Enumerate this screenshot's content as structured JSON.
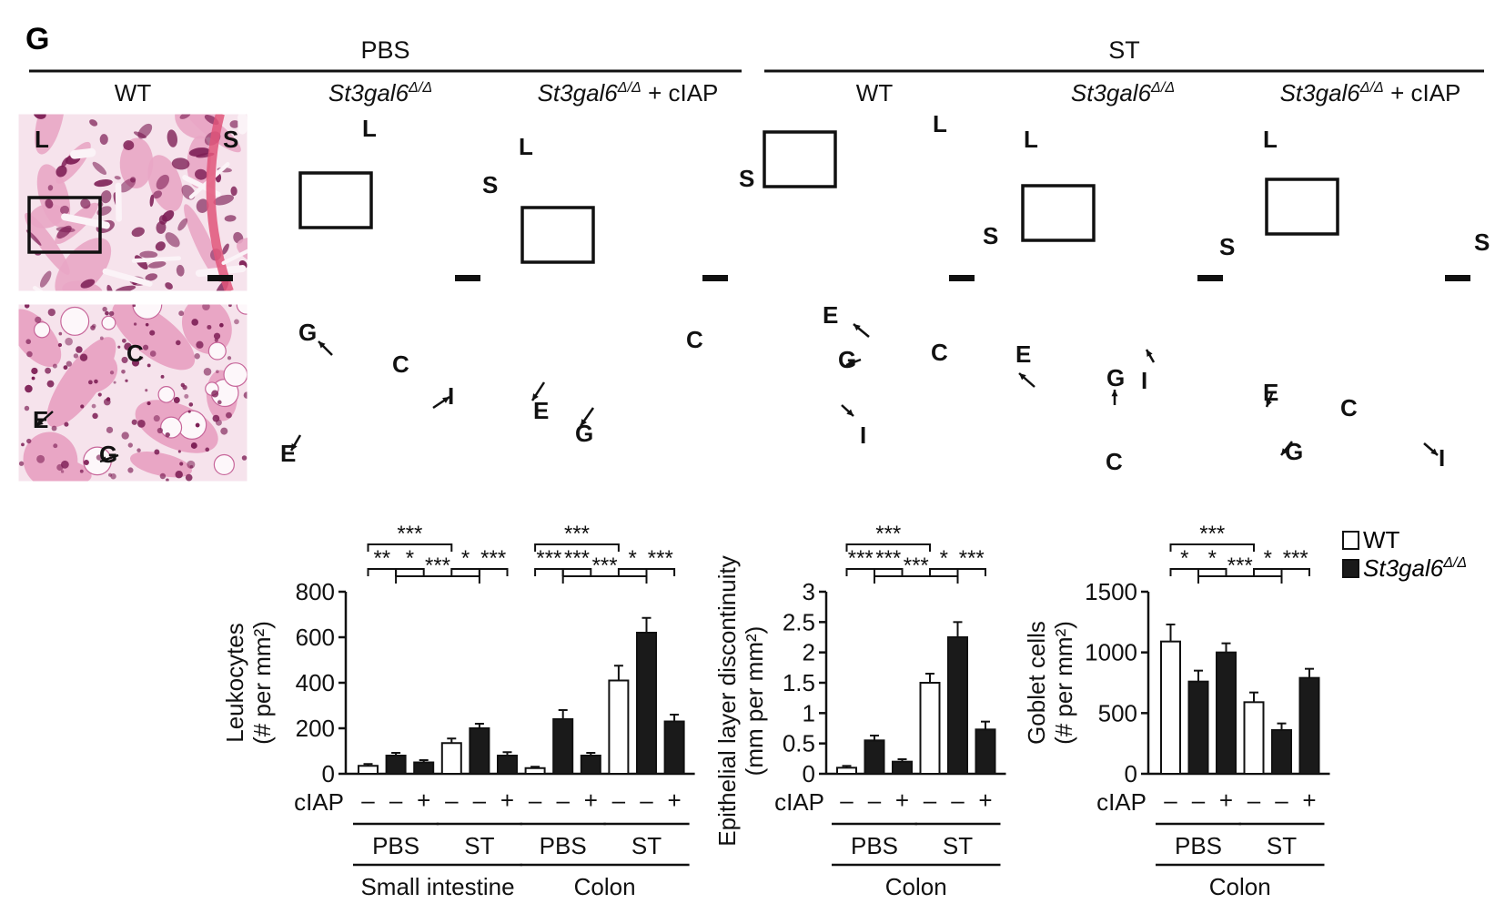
{
  "panel_label": "G",
  "colors": {
    "wt_fill": "#ffffff",
    "mut_fill": "#1a1a1a",
    "tissue_light": "#e9a6c5",
    "tissue_dark": "#7d1e55",
    "tissue_bg": "#f6e3ec",
    "muscle": "#e0557a"
  },
  "micrographs": {
    "group_headers": [
      "PBS",
      "ST"
    ],
    "column_titles": [
      {
        "main": "WT",
        "sup": "",
        "suffix": ""
      },
      {
        "main": "St3gal6",
        "sup": "Δ/Δ",
        "suffix": ""
      },
      {
        "main": "St3gal6",
        "sup": "Δ/Δ",
        "suffix": " + cIAP"
      },
      {
        "main": "WT",
        "sup": "",
        "suffix": ""
      },
      {
        "main": "St3gal6",
        "sup": "Δ/Δ",
        "suffix": ""
      },
      {
        "main": "St3gal6",
        "sup": "Δ/Δ",
        "suffix": " + cIAP"
      }
    ],
    "top_panels": [
      {
        "labels": [
          "L",
          "S"
        ]
      },
      {
        "labels": [
          "L",
          "S"
        ]
      },
      {
        "labels": [
          "L",
          "S"
        ]
      },
      {
        "labels": [
          "L",
          "S"
        ]
      },
      {
        "labels": [
          "L",
          "S"
        ]
      },
      {
        "labels": [
          "L",
          "S"
        ]
      }
    ],
    "bottom_panels": [
      {
        "labels": [
          "C",
          "E",
          "G"
        ]
      },
      {
        "labels": [
          "G",
          "C",
          "I",
          "E"
        ]
      },
      {
        "labels": [
          "C",
          "E",
          "G"
        ]
      },
      {
        "labels": [
          "E",
          "G",
          "C",
          "I"
        ]
      },
      {
        "labels": [
          "E",
          "G",
          "I",
          "C"
        ]
      },
      {
        "labels": [
          "E",
          "C",
          "G",
          "I"
        ]
      }
    ]
  },
  "legend": {
    "entries": [
      {
        "main": "WT",
        "sup": "",
        "color": "#ffffff"
      },
      {
        "main": "St3gal6",
        "sup": "Δ/Δ",
        "color": "#1a1a1a"
      }
    ]
  },
  "chart_data": [
    {
      "type": "bar",
      "ylabel_line1": "Leukocytes",
      "ylabel_line2": "(# per mm²)",
      "ylim": [
        0,
        800
      ],
      "yticks": [
        0,
        200,
        400,
        600,
        800
      ],
      "row_label": "cIAP",
      "ciap": [
        "–",
        "–",
        "+",
        "–",
        "–",
        "+",
        "–",
        "–",
        "+",
        "–",
        "–",
        "+"
      ],
      "genotype": [
        "WT",
        "St3gal6Δ/Δ",
        "St3gal6Δ/Δ",
        "WT",
        "St3gal6Δ/Δ",
        "St3gal6Δ/Δ",
        "WT",
        "St3gal6Δ/Δ",
        "St3gal6Δ/Δ",
        "WT",
        "St3gal6Δ/Δ",
        "St3gal6Δ/Δ"
      ],
      "values": [
        35,
        80,
        50,
        135,
        200,
        80,
        25,
        240,
        80,
        410,
        620,
        230
      ],
      "errors": [
        8,
        12,
        10,
        20,
        20,
        15,
        6,
        40,
        12,
        65,
        65,
        30
      ],
      "groups": [
        "PBS",
        "ST",
        "PBS",
        "ST"
      ],
      "tissues": [
        "Small intestine",
        "Colon"
      ],
      "significance": [
        {
          "label": "**",
          "from": 0,
          "to": 1,
          "level": 1
        },
        {
          "label": "*",
          "from": 1,
          "to": 2,
          "level": 1
        },
        {
          "label": "*",
          "from": 3,
          "to": 4,
          "level": 1
        },
        {
          "label": "***",
          "from": 4,
          "to": 5,
          "level": 1
        },
        {
          "label": "***",
          "from": 0,
          "to": 3,
          "level": 2
        },
        {
          "label": "***",
          "from": 1,
          "to": 4,
          "level": 0
        },
        {
          "label": "***",
          "from": 6,
          "to": 7,
          "level": 1
        },
        {
          "label": "***",
          "from": 7,
          "to": 8,
          "level": 1
        },
        {
          "label": "*",
          "from": 9,
          "to": 10,
          "level": 1
        },
        {
          "label": "***",
          "from": 10,
          "to": 11,
          "level": 1
        },
        {
          "label": "***",
          "from": 6,
          "to": 9,
          "level": 2
        },
        {
          "label": "***",
          "from": 7,
          "to": 10,
          "level": 0
        }
      ]
    },
    {
      "type": "bar",
      "ylabel_line1": "Epithelial layer discontinuity",
      "ylabel_line2": "(mm per mm²)",
      "ylim": [
        0,
        3
      ],
      "yticks": [
        0,
        0.5,
        1,
        1.5,
        2,
        2.5,
        3
      ],
      "row_label": "cIAP",
      "ciap": [
        "–",
        "–",
        "+",
        "–",
        "–",
        "+"
      ],
      "genotype": [
        "WT",
        "St3gal6Δ/Δ",
        "St3gal6Δ/Δ",
        "WT",
        "St3gal6Δ/Δ",
        "St3gal6Δ/Δ"
      ],
      "values": [
        0.1,
        0.55,
        0.2,
        1.5,
        2.25,
        0.73
      ],
      "errors": [
        0.03,
        0.08,
        0.04,
        0.15,
        0.25,
        0.13
      ],
      "groups": [
        "PBS",
        "ST"
      ],
      "tissues": [
        "Colon"
      ],
      "significance": [
        {
          "label": "***",
          "from": 0,
          "to": 1,
          "level": 1
        },
        {
          "label": "***",
          "from": 1,
          "to": 2,
          "level": 1
        },
        {
          "label": "*",
          "from": 3,
          "to": 4,
          "level": 1
        },
        {
          "label": "***",
          "from": 4,
          "to": 5,
          "level": 1
        },
        {
          "label": "***",
          "from": 0,
          "to": 3,
          "level": 2
        },
        {
          "label": "***",
          "from": 1,
          "to": 4,
          "level": 0
        }
      ]
    },
    {
      "type": "bar",
      "ylabel_line1": "Goblet cells",
      "ylabel_line2": "(# per mm²)",
      "ylim": [
        0,
        1500
      ],
      "yticks": [
        0,
        500,
        1000,
        1500
      ],
      "row_label": "cIAP",
      "ciap": [
        "–",
        "–",
        "+",
        "–",
        "–",
        "+"
      ],
      "genotype": [
        "WT",
        "St3gal6Δ/Δ",
        "St3gal6Δ/Δ",
        "WT",
        "St3gal6Δ/Δ",
        "St3gal6Δ/Δ"
      ],
      "values": [
        1090,
        760,
        1000,
        590,
        360,
        790
      ],
      "errors": [
        140,
        90,
        75,
        80,
        55,
        75
      ],
      "groups": [
        "PBS",
        "ST"
      ],
      "tissues": [
        "Colon"
      ],
      "significance": [
        {
          "label": "*",
          "from": 0,
          "to": 1,
          "level": 1
        },
        {
          "label": "*",
          "from": 1,
          "to": 2,
          "level": 1
        },
        {
          "label": "*",
          "from": 3,
          "to": 4,
          "level": 1
        },
        {
          "label": "***",
          "from": 4,
          "to": 5,
          "level": 1
        },
        {
          "label": "***",
          "from": 0,
          "to": 3,
          "level": 2
        },
        {
          "label": "***",
          "from": 1,
          "to": 4,
          "level": 0
        }
      ]
    }
  ]
}
